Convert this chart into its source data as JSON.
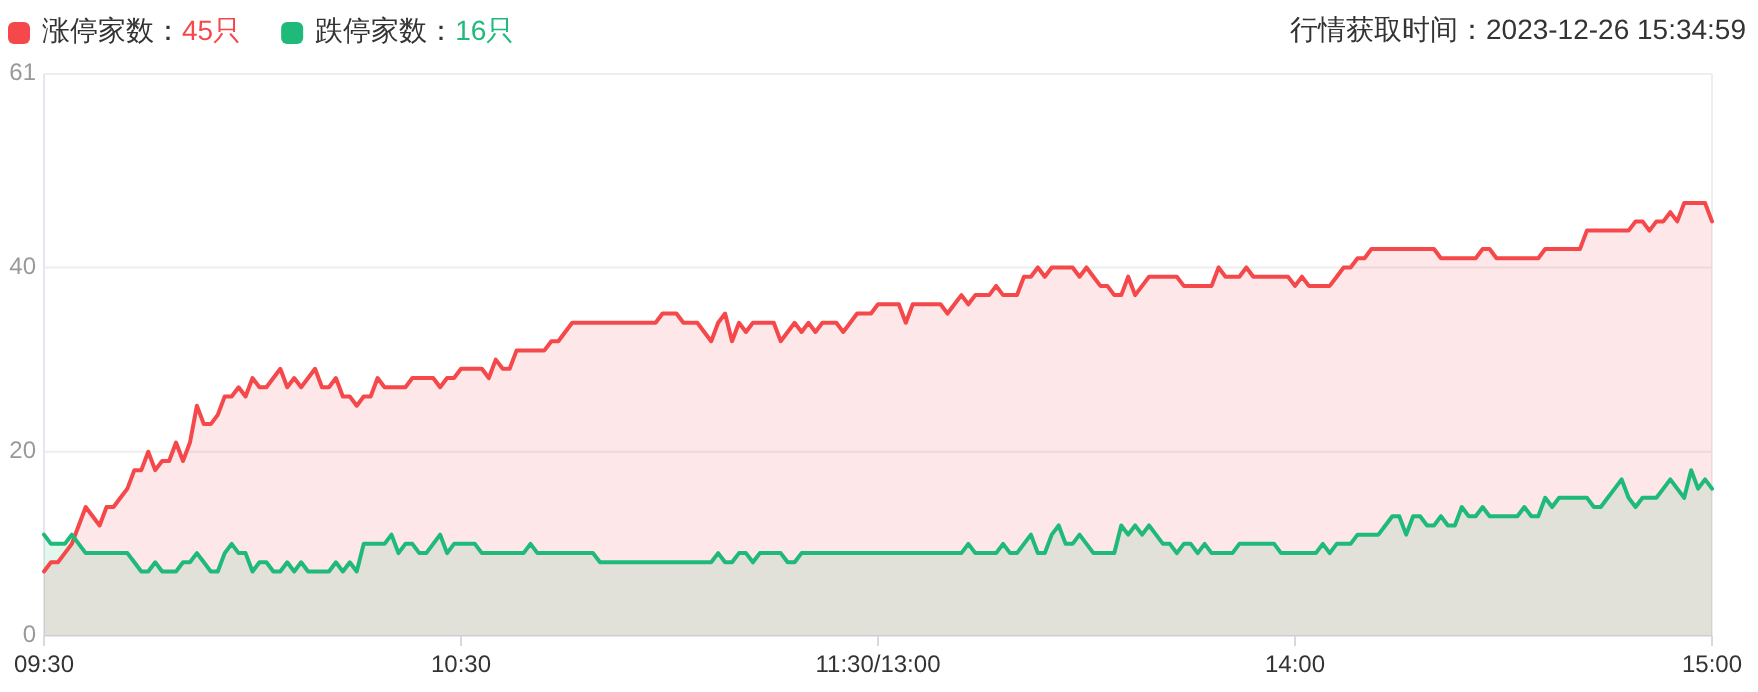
{
  "chart_data": {
    "type": "area",
    "categories": [
      "09:30",
      null,
      null,
      null,
      null,
      null,
      null,
      null,
      null,
      null,
      null,
      null,
      null,
      null,
      null,
      null,
      null,
      null,
      null,
      null,
      null,
      null,
      null,
      null,
      null,
      null,
      null,
      null,
      null,
      null,
      null,
      null,
      null,
      null,
      null,
      null,
      null,
      null,
      null,
      null,
      null,
      null,
      null,
      null,
      null,
      null,
      null,
      null,
      null,
      null,
      null,
      null,
      null,
      null,
      null,
      null,
      null,
      null,
      null,
      null,
      "10:30",
      null,
      null,
      null,
      null,
      null,
      null,
      null,
      null,
      null,
      null,
      null,
      null,
      null,
      null,
      null,
      null,
      null,
      null,
      null,
      null,
      null,
      null,
      null,
      null,
      null,
      null,
      null,
      null,
      null,
      null,
      null,
      null,
      null,
      null,
      null,
      null,
      null,
      null,
      null,
      null,
      null,
      null,
      null,
      null,
      null,
      null,
      null,
      null,
      null,
      null,
      null,
      null,
      null,
      null,
      null,
      null,
      null,
      null,
      null,
      "11:30/13:00",
      null,
      null,
      null,
      null,
      null,
      null,
      null,
      null,
      null,
      null,
      null,
      null,
      null,
      null,
      null,
      null,
      null,
      null,
      null,
      null,
      null,
      null,
      null,
      null,
      null,
      null,
      null,
      null,
      null,
      null,
      null,
      null,
      null,
      null,
      null,
      null,
      null,
      null,
      null,
      null,
      null,
      null,
      null,
      null,
      null,
      null,
      null,
      null,
      null,
      null,
      null,
      null,
      null,
      null,
      null,
      null,
      null,
      null,
      null,
      "14:00",
      null,
      null,
      null,
      null,
      null,
      null,
      null,
      null,
      null,
      null,
      null,
      null,
      null,
      null,
      null,
      null,
      null,
      null,
      null,
      null,
      null,
      null,
      null,
      null,
      null,
      null,
      null,
      null,
      null,
      null,
      null,
      null,
      null,
      null,
      null,
      null,
      null,
      null,
      null,
      null,
      null,
      null,
      null,
      null,
      null,
      null,
      null,
      null,
      null,
      null,
      null,
      null,
      null,
      null,
      null,
      null,
      null,
      null,
      null,
      "15:00"
    ],
    "ylim": [
      0,
      61
    ],
    "yticks": [
      0,
      20,
      40,
      61
    ],
    "grid": "y",
    "legend": "top left",
    "annotations": [
      "45只",
      "16只",
      "行情获取时间：2023-12-26 15:34:59"
    ],
    "series": [
      {
        "name": "涨停家数：",
        "color": "#f5484a",
        "values": [
          7,
          8,
          8,
          9,
          10,
          12,
          14,
          13,
          12,
          14,
          14,
          15,
          16,
          18,
          18,
          20,
          18,
          19,
          19,
          21,
          19,
          21,
          25,
          23,
          23,
          24,
          26,
          26,
          27,
          26,
          28,
          27,
          27,
          28,
          29,
          27,
          28,
          27,
          28,
          29,
          27,
          27,
          28,
          26,
          26,
          25,
          26,
          26,
          28,
          27,
          27,
          27,
          27,
          28,
          28,
          28,
          28,
          27,
          28,
          28,
          29,
          29,
          29,
          29,
          28,
          30,
          29,
          29,
          31,
          31,
          31,
          31,
          31,
          32,
          32,
          33,
          34,
          34,
          34,
          34,
          34,
          34,
          34,
          34,
          34,
          34,
          34,
          34,
          34,
          35,
          35,
          35,
          34,
          34,
          34,
          33,
          32,
          34,
          35,
          32,
          34,
          33,
          34,
          34,
          34,
          34,
          32,
          33,
          34,
          33,
          34,
          33,
          34,
          34,
          34,
          33,
          34,
          35,
          35,
          35,
          36,
          36,
          36,
          36,
          34,
          36,
          36,
          36,
          36,
          36,
          35,
          36,
          37,
          36,
          37,
          37,
          37,
          38,
          37,
          37,
          37,
          39,
          39,
          40,
          39,
          40,
          40,
          40,
          40,
          39,
          40,
          39,
          38,
          38,
          37,
          37,
          39,
          37,
          38,
          39,
          39,
          39,
          39,
          39,
          38,
          38,
          38,
          38,
          38,
          40,
          39,
          39,
          39,
          40,
          39,
          39,
          39,
          39,
          39,
          39,
          38,
          39,
          38,
          38,
          38,
          38,
          39,
          40,
          40,
          41,
          41,
          42,
          42,
          42,
          42,
          42,
          42,
          42,
          42,
          42,
          42,
          41,
          41,
          41,
          41,
          41,
          41,
          42,
          42,
          41,
          41,
          41,
          41,
          41,
          41,
          41,
          42,
          42,
          42,
          42,
          42,
          42,
          44,
          44,
          44,
          44,
          44,
          44,
          44,
          45,
          45,
          44,
          45,
          45,
          46,
          45,
          47,
          47,
          47,
          47,
          45
        ]
      },
      {
        "name": "跌停家数：",
        "color": "#1fba7a",
        "values": [
          11,
          10,
          10,
          10,
          11,
          10,
          9,
          9,
          9,
          9,
          9,
          9,
          9,
          8,
          7,
          7,
          8,
          7,
          7,
          7,
          8,
          8,
          9,
          8,
          7,
          7,
          9,
          10,
          9,
          9,
          7,
          8,
          8,
          7,
          7,
          8,
          7,
          8,
          7,
          7,
          7,
          7,
          8,
          7,
          8,
          7,
          10,
          10,
          10,
          10,
          11,
          9,
          10,
          10,
          9,
          9,
          10,
          11,
          9,
          10,
          10,
          10,
          10,
          9,
          9,
          9,
          9,
          9,
          9,
          9,
          10,
          9,
          9,
          9,
          9,
          9,
          9,
          9,
          9,
          9,
          8,
          8,
          8,
          8,
          8,
          8,
          8,
          8,
          8,
          8,
          8,
          8,
          8,
          8,
          8,
          8,
          8,
          9,
          8,
          8,
          9,
          9,
          8,
          9,
          9,
          9,
          9,
          8,
          8,
          9,
          9,
          9,
          9,
          9,
          9,
          9,
          9,
          9,
          9,
          9,
          9,
          9,
          9,
          9,
          9,
          9,
          9,
          9,
          9,
          9,
          9,
          9,
          9,
          10,
          9,
          9,
          9,
          9,
          10,
          9,
          9,
          10,
          11,
          9,
          9,
          11,
          12,
          10,
          10,
          11,
          10,
          9,
          9,
          9,
          9,
          12,
          11,
          12,
          11,
          12,
          11,
          10,
          10,
          9,
          10,
          10,
          9,
          10,
          9,
          9,
          9,
          9,
          10,
          10,
          10,
          10,
          10,
          10,
          9,
          9,
          9,
          9,
          9,
          9,
          10,
          9,
          10,
          10,
          10,
          11,
          11,
          11,
          11,
          12,
          13,
          13,
          11,
          13,
          13,
          12,
          12,
          13,
          12,
          12,
          14,
          13,
          13,
          14,
          13,
          13,
          13,
          13,
          13,
          14,
          13,
          13,
          15,
          14,
          15,
          15,
          15,
          15,
          15,
          14,
          14,
          15,
          16,
          17,
          15,
          14,
          15,
          15,
          15,
          16,
          17,
          16,
          15,
          18,
          16,
          17,
          16
        ]
      }
    ]
  }
}
